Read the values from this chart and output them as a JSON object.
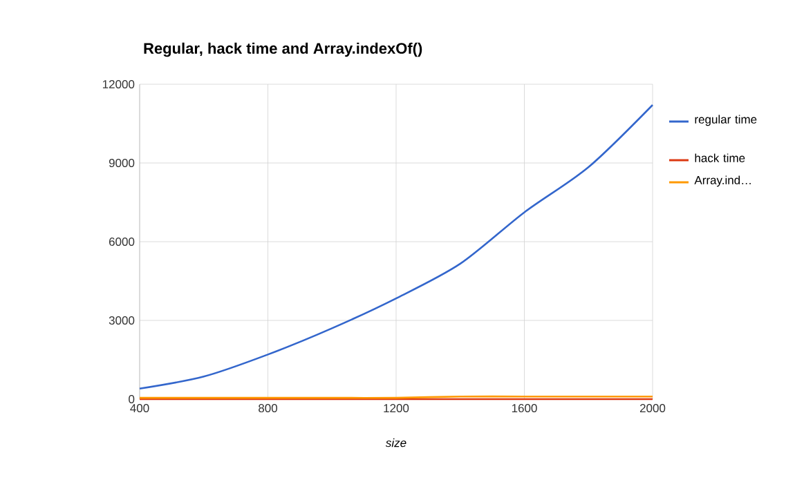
{
  "chart_data": {
    "type": "line",
    "title": "Regular, hack time and Array.indexOf()",
    "xlabel": "size",
    "x": [
      400,
      600,
      800,
      1000,
      1200,
      1400,
      1600,
      1800,
      2000
    ],
    "series": [
      {
        "name": "regular time",
        "color": "#3366cc",
        "values": [
          400,
          860,
          1700,
          2700,
          3840,
          5160,
          7120,
          8840,
          11210
        ]
      },
      {
        "name": "hack time",
        "color": "#dc3912",
        "values": [
          0,
          0,
          0,
          0,
          0,
          0,
          0,
          0,
          0
        ]
      },
      {
        "name": "Array.ind…",
        "color": "#ff9900",
        "values": [
          50,
          50,
          50,
          50,
          50,
          100,
          100,
          100,
          100
        ]
      }
    ],
    "xlim": [
      400,
      2000
    ],
    "xticks": [
      400,
      800,
      1200,
      1600,
      2000
    ],
    "ylim": [
      0,
      12000
    ],
    "yticks": [
      0,
      3000,
      6000,
      9000,
      12000
    ],
    "grid": true,
    "legend": "right",
    "marker": "none",
    "line_style": "solid"
  }
}
